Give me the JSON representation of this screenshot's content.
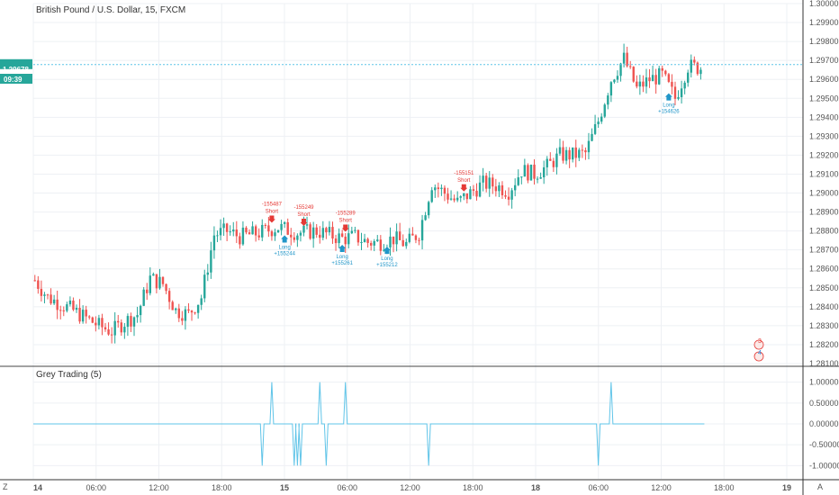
{
  "main_title": "British Pound / U.S. Dollar, 15, FXCM",
  "price_label": "1.29678",
  "countdown": "09:39",
  "indicator_title": "Grey Trading (5)",
  "bottom_left": "Z",
  "bottom_right": "A",
  "colors": {
    "up": "#26a69a",
    "down": "#ef5350",
    "indicator": "#5fc4e8",
    "priceline": "#5fc4e8",
    "long": "#2196c8",
    "short": "#e53935",
    "grid": "#eef0f4"
  },
  "icons": [
    "zoom-icon",
    "auto-scale-icon",
    "arrow-down-icon",
    "arrow-up-icon",
    "flag-icon"
  ],
  "badges": [
    "3",
    "4"
  ],
  "chart_data": [
    {
      "type": "candlestick",
      "title": "British Pound / U.S. Dollar, 15, FXCM",
      "ylim": [
        1.281,
        1.3
      ],
      "y_ticks": [
        "1.30000",
        "1.29900",
        "1.29800",
        "1.29700",
        "1.29600",
        "1.29500",
        "1.29400",
        "1.29300",
        "1.29200",
        "1.29100",
        "1.29000",
        "1.28900",
        "1.28800",
        "1.28700",
        "1.28600",
        "1.28500",
        "1.28400",
        "1.28300",
        "1.28200",
        "1.28100"
      ],
      "x_ticks": [
        "14",
        "06:00",
        "12:00",
        "18:00",
        "15",
        "06:00",
        "12:00",
        "18:00",
        "18",
        "06:00",
        "12:00",
        "18:00",
        "19"
      ],
      "current_price": 1.29678,
      "path": [
        [
          0,
          1.2854
        ],
        [
          4,
          1.2845
        ],
        [
          12,
          1.2838
        ],
        [
          20,
          1.283
        ],
        [
          24,
          1.2827
        ],
        [
          28,
          1.2832
        ],
        [
          32,
          1.2836
        ],
        [
          36,
          1.2855
        ],
        [
          40,
          1.2852
        ],
        [
          44,
          1.2838
        ],
        [
          48,
          1.2836
        ],
        [
          52,
          1.2845
        ],
        [
          56,
          1.2878
        ],
        [
          60,
          1.288
        ],
        [
          64,
          1.2877
        ],
        [
          70,
          1.2879
        ],
        [
          76,
          1.2882
        ],
        [
          82,
          1.2879
        ],
        [
          88,
          1.288
        ],
        [
          92,
          1.2878
        ],
        [
          96,
          1.2876
        ],
        [
          100,
          1.2877
        ],
        [
          104,
          1.2874
        ],
        [
          108,
          1.2874
        ],
        [
          112,
          1.2876
        ],
        [
          116,
          1.2873
        ],
        [
          120,
          1.2879
        ],
        [
          124,
          1.2905
        ],
        [
          128,
          1.29
        ],
        [
          132,
          1.2895
        ],
        [
          136,
          1.29
        ],
        [
          140,
          1.2905
        ],
        [
          144,
          1.2904
        ],
        [
          148,
          1.2901
        ],
        [
          152,
          1.2912
        ],
        [
          156,
          1.291
        ],
        [
          160,
          1.2914
        ],
        [
          164,
          1.292
        ],
        [
          168,
          1.292
        ],
        [
          172,
          1.2921
        ],
        [
          176,
          1.2938
        ],
        [
          180,
          1.296
        ],
        [
          184,
          1.2971
        ],
        [
          188,
          1.2955
        ],
        [
          192,
          1.296
        ],
        [
          196,
          1.2962
        ],
        [
          200,
          1.295
        ],
        [
          204,
          1.2967
        ],
        [
          208,
          1.2966
        ]
      ],
      "signals": [
        {
          "kind": "short",
          "label": "Short",
          "value": "-155487",
          "bar": 74
        },
        {
          "kind": "long",
          "label": "Long",
          "value": "+155244",
          "bar": 78
        },
        {
          "kind": "short",
          "label": "Short",
          "value": "-155249",
          "bar": 84
        },
        {
          "kind": "long",
          "label": "Long",
          "value": "+155261",
          "bar": 96
        },
        {
          "kind": "short",
          "label": "Short",
          "value": "-155289",
          "bar": 97
        },
        {
          "kind": "long",
          "label": "Long",
          "value": "+155212",
          "bar": 110
        },
        {
          "kind": "short",
          "label": "Short",
          "value": "-155151",
          "bar": 134
        },
        {
          "kind": "long",
          "label": "Long",
          "value": "+154626",
          "bar": 198
        }
      ]
    },
    {
      "type": "line",
      "title": "Grey Trading (5)",
      "ylim": [
        -1.1,
        1.1
      ],
      "y_ticks": [
        "1.00000",
        "0.50000",
        "0.00000",
        "-0.50000",
        "-1.00000"
      ],
      "spikes": [
        [
          71,
          -1
        ],
        [
          74,
          1
        ],
        [
          81,
          -1
        ],
        [
          82,
          -1
        ],
        [
          83,
          -1
        ],
        [
          89,
          1
        ],
        [
          91,
          -1
        ],
        [
          97,
          1
        ],
        [
          123,
          -1
        ],
        [
          176,
          -1
        ],
        [
          180,
          1
        ]
      ]
    }
  ]
}
